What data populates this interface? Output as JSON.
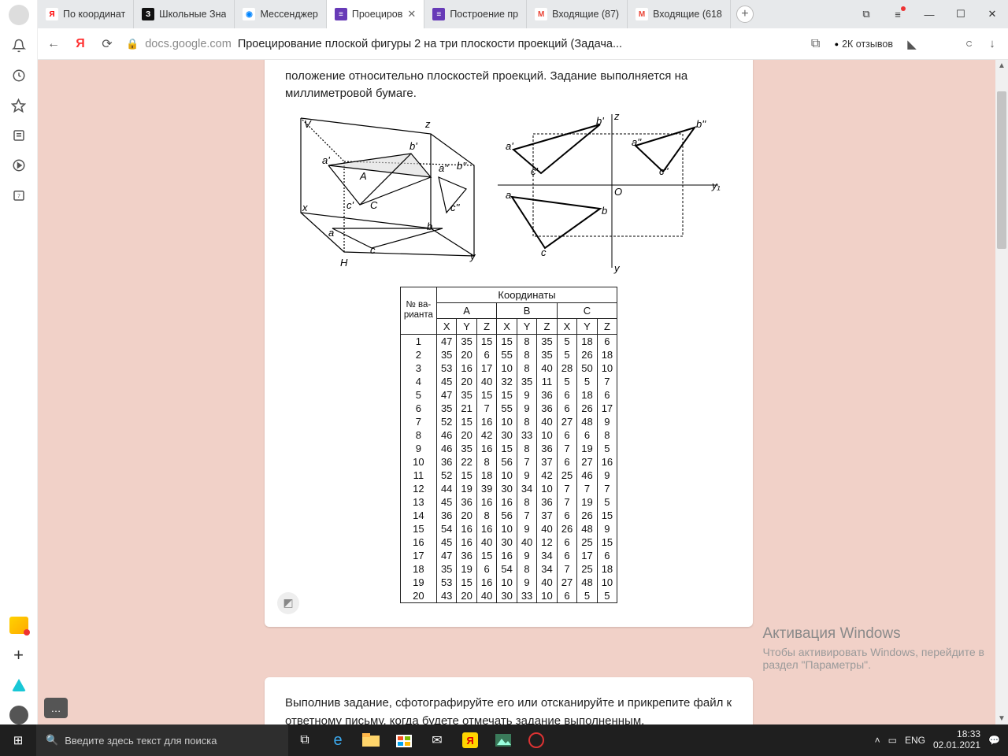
{
  "tabs": [
    {
      "label": "По координат",
      "fav_bg": "#ffffff",
      "fav_fg": "#ff0000",
      "fav_txt": "Я"
    },
    {
      "label": "Школьные Зна",
      "fav_bg": "#111111",
      "fav_fg": "#ffffff",
      "fav_txt": "З"
    },
    {
      "label": "Мессенджер",
      "fav_bg": "#ffffff",
      "fav_fg": "#0084ff",
      "fav_txt": "◉"
    },
    {
      "label": "Проециров",
      "fav_bg": "#673ab7",
      "fav_fg": "#ffffff",
      "fav_txt": "≡",
      "active": true,
      "closable": true
    },
    {
      "label": "Построение пр",
      "fav_bg": "#673ab7",
      "fav_fg": "#ffffff",
      "fav_txt": "≡"
    },
    {
      "label": "Входящие (87)",
      "fav_bg": "#ffffff",
      "fav_fg": "#ea4335",
      "fav_txt": "M"
    },
    {
      "label": "Входящие (618",
      "fav_bg": "#ffffff",
      "fav_fg": "#ea4335",
      "fav_txt": "M"
    }
  ],
  "addr": {
    "domain": "docs.google.com",
    "title": "Проецирование плоской фигуры 2 на три плоскости проекций (Задача...",
    "reviews": "2К отзывов"
  },
  "page": {
    "intro": "положение относительно плоскостей проекций. Задание выполняется на миллиметровой бумаге.",
    "outro": "Выполнив задание, сфотографируйте его или отсканируйте и прикрепите файл к ответному письму, когда будете отмечать задание выполненным.",
    "table": {
      "var_header": "№ ва-\nрианта",
      "coord_header": "Координаты",
      "points": [
        "A",
        "B",
        "C"
      ],
      "axes": [
        "X",
        "Y",
        "Z"
      ],
      "rows": [
        [
          1,
          47,
          35,
          15,
          15,
          8,
          35,
          5,
          18,
          6
        ],
        [
          2,
          35,
          20,
          6,
          55,
          8,
          35,
          5,
          26,
          18
        ],
        [
          3,
          53,
          16,
          17,
          10,
          8,
          40,
          28,
          50,
          10
        ],
        [
          4,
          45,
          20,
          40,
          32,
          35,
          11,
          5,
          5,
          7
        ],
        [
          5,
          47,
          35,
          15,
          15,
          9,
          36,
          6,
          18,
          6
        ],
        [
          6,
          35,
          21,
          7,
          55,
          9,
          36,
          6,
          26,
          17
        ],
        [
          7,
          52,
          15,
          16,
          10,
          8,
          40,
          27,
          48,
          9
        ],
        [
          8,
          46,
          20,
          42,
          30,
          33,
          10,
          6,
          6,
          8
        ],
        [
          9,
          46,
          35,
          16,
          15,
          8,
          36,
          7,
          19,
          5
        ],
        [
          10,
          36,
          22,
          8,
          56,
          7,
          37,
          6,
          27,
          16
        ],
        [
          11,
          52,
          15,
          18,
          10,
          9,
          42,
          25,
          46,
          9
        ],
        [
          12,
          44,
          19,
          39,
          30,
          34,
          10,
          7,
          7,
          7
        ],
        [
          13,
          45,
          36,
          16,
          16,
          8,
          36,
          7,
          19,
          5
        ],
        [
          14,
          36,
          20,
          8,
          56,
          7,
          37,
          6,
          26,
          15
        ],
        [
          15,
          54,
          16,
          16,
          10,
          9,
          40,
          26,
          48,
          9
        ],
        [
          16,
          45,
          16,
          40,
          30,
          40,
          12,
          6,
          25,
          15
        ],
        [
          17,
          47,
          36,
          15,
          16,
          9,
          34,
          6,
          17,
          6
        ],
        [
          18,
          35,
          19,
          6,
          54,
          8,
          34,
          7,
          25,
          18
        ],
        [
          19,
          53,
          15,
          16,
          10,
          9,
          40,
          27,
          48,
          10
        ],
        [
          20,
          43,
          20,
          40,
          30,
          33,
          10,
          6,
          5,
          5
        ]
      ]
    },
    "diagram_labels": {
      "left": [
        "V",
        "z",
        "a'",
        "b'",
        "a''",
        "b''",
        "A",
        "x",
        "c'",
        "C",
        "c''",
        "a",
        "b",
        "c",
        "H",
        "y"
      ],
      "right": [
        "z",
        "b'",
        "b''",
        "a'",
        "a''",
        "c'",
        "c''",
        "O",
        "y₁",
        "a",
        "b",
        "c",
        "y"
      ]
    }
  },
  "watermark": {
    "title": "Активация Windows",
    "line1": "Чтобы активировать Windows, перейдите в",
    "line2": "раздел \"Параметры\"."
  },
  "taskbar": {
    "search_placeholder": "Введите здесь текст для поиска",
    "lang": "ENG",
    "time": "18:33",
    "date": "02.01.2021"
  },
  "colors": {
    "page_bg": "#f1d1c8",
    "tabstrip": "#e7e9eb",
    "taskbar": "#1f1f1f"
  }
}
